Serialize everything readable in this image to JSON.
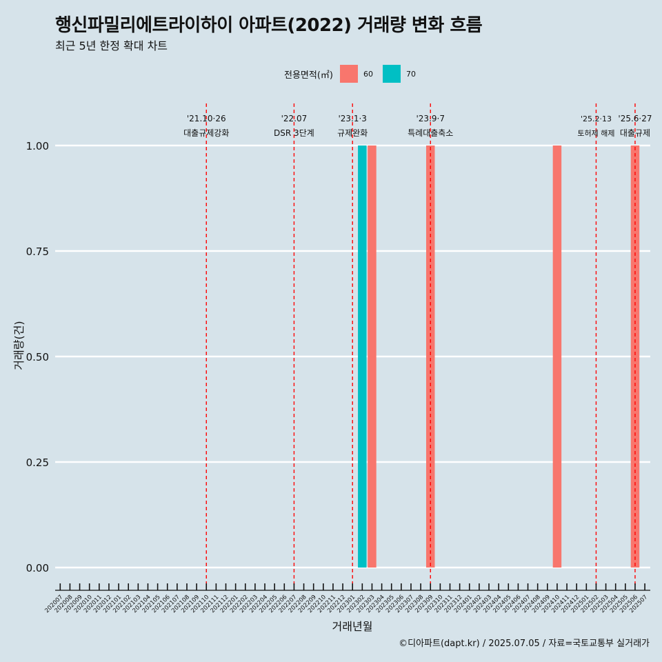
{
  "chart_data": {
    "type": "bar",
    "title": "행신파밀리에트라이하이 아파트(2022) 거래량 변화 흐름",
    "subtitle": "최근 5년 한정 확대 차트",
    "xlabel": "거래년월",
    "ylabel": "거래량(건)",
    "ylim": [
      0,
      1
    ],
    "yticks": [
      "0.00",
      "0.25",
      "0.50",
      "0.75",
      "1.00"
    ],
    "grid": true,
    "legend_title": "전용면적(㎡)",
    "legend_position": "top",
    "categories": [
      "202007",
      "202008",
      "202009",
      "202010",
      "202011",
      "202012",
      "202101",
      "202102",
      "202103",
      "202104",
      "202105",
      "202106",
      "202107",
      "202108",
      "202109",
      "202110",
      "202111",
      "202112",
      "202201",
      "202202",
      "202203",
      "202204",
      "202205",
      "202206",
      "202207",
      "202208",
      "202209",
      "202210",
      "202211",
      "202212",
      "202301",
      "202302",
      "202303",
      "202304",
      "202305",
      "202306",
      "202307",
      "202308",
      "202309",
      "202310",
      "202311",
      "202312",
      "202401",
      "202402",
      "202403",
      "202404",
      "202405",
      "202406",
      "202407",
      "202408",
      "202409",
      "202410",
      "202411",
      "202412",
      "202501",
      "202502",
      "202503",
      "202504",
      "202505",
      "202506",
      "202507"
    ],
    "series": [
      {
        "name": "60",
        "color": "#f8766d",
        "points": [
          {
            "x": "202303",
            "y": 1
          },
          {
            "x": "202309",
            "y": 1
          },
          {
            "x": "202410",
            "y": 1
          },
          {
            "x": "202506",
            "y": 1
          }
        ]
      },
      {
        "name": "70",
        "color": "#00bfc4",
        "points": [
          {
            "x": "202302",
            "y": 1
          }
        ]
      }
    ],
    "annotations": [
      {
        "x": "202110",
        "date": "'21.10·26",
        "label": "대출규제강화"
      },
      {
        "x": "202207",
        "date": "'22.07",
        "label": "DSR 3단계"
      },
      {
        "x": "202301",
        "date": "'23.1·3",
        "label": "규제완화"
      },
      {
        "x": "202309",
        "date": "'23.9·7",
        "label": "특례대출축소"
      },
      {
        "x": "202502",
        "date": "'25.2·13",
        "label": "토허제 해제"
      },
      {
        "x": "202506",
        "date": "'25.6·27",
        "label": "대출규제"
      }
    ],
    "annotation_color": "#ff0000",
    "caption": "©디아파트(dapt.kr) / 2025.07.05 / 자료=국토교통부 실거래가"
  }
}
